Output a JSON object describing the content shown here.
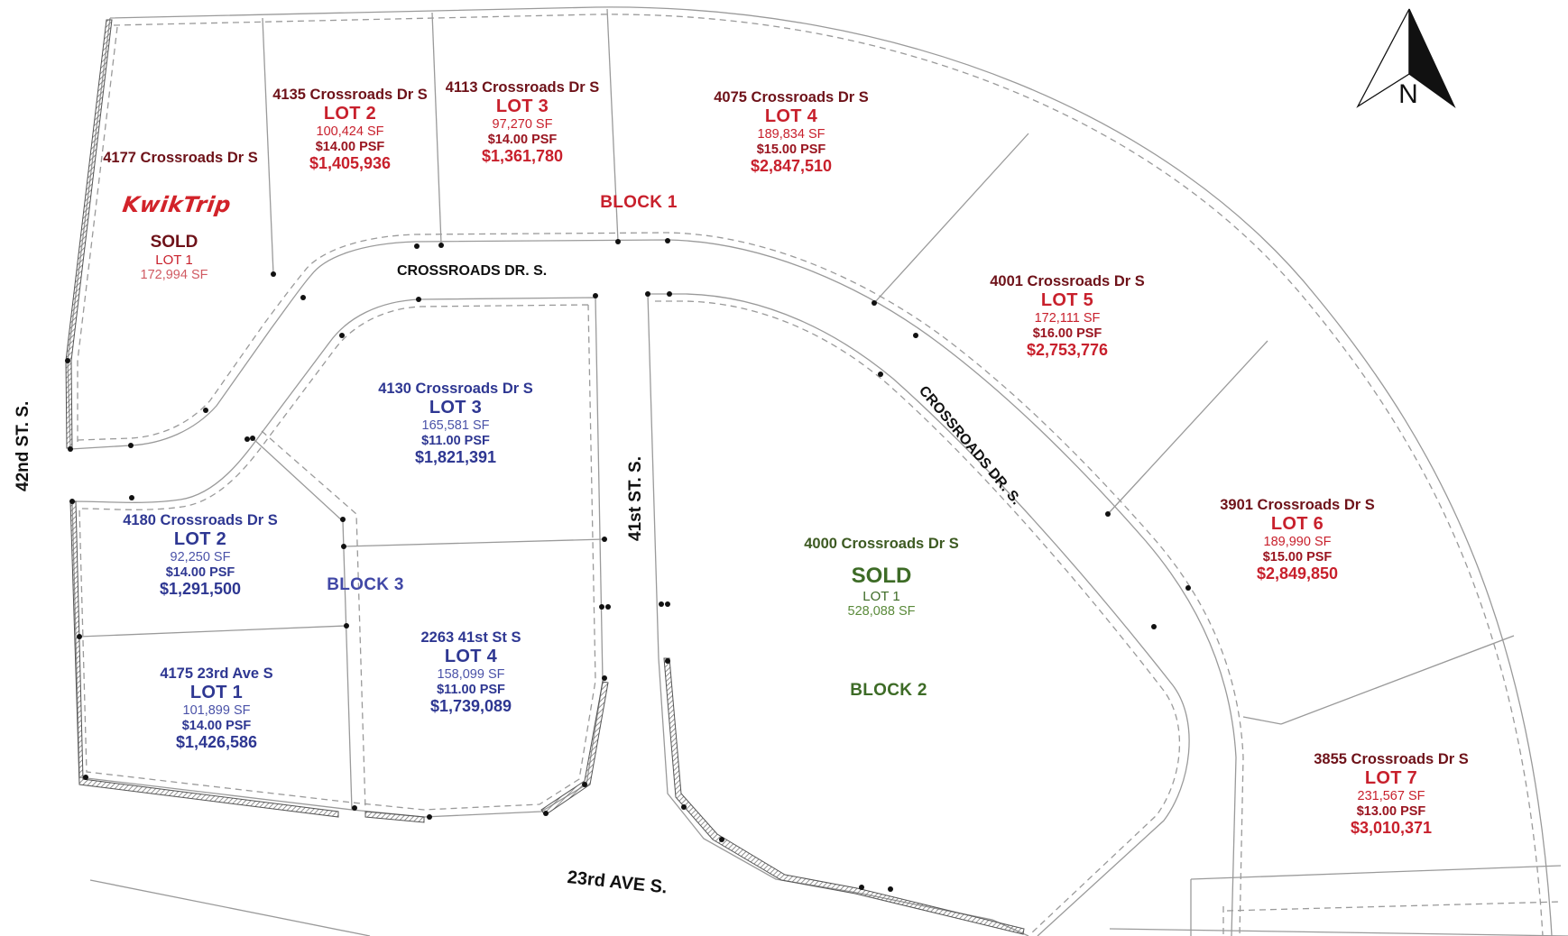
{
  "streets": {
    "crossroads_north": "CROSSROADS DR. S.",
    "crossroads_east": "CROSSROADS DR. S.",
    "st42": "42nd ST. S.",
    "st41": "41st ST. S.",
    "ave23": "23rd AVE S."
  },
  "north_arrow": {
    "label": "N"
  },
  "blocks": {
    "block1": "BLOCK 1",
    "block2": "BLOCK 2",
    "block3": "BLOCK 3"
  },
  "kwik_trip": {
    "logo_text": "KwikTrip",
    "address": "4177 Crossroads Dr S",
    "status": "SOLD",
    "lot": "LOT 1",
    "sf": "172,994 SF"
  },
  "block1_lot2": {
    "address": "4135 Crossroads Dr S",
    "lot": "LOT 2",
    "sf": "100,424 SF",
    "psf": "$14.00 PSF",
    "price": "$1,405,936"
  },
  "block1_lot3": {
    "address": "4113 Crossroads Dr S",
    "lot": "LOT 3",
    "sf": "97,270 SF",
    "psf": "$14.00 PSF",
    "price": "$1,361,780"
  },
  "block1_lot4": {
    "address": "4075 Crossroads Dr S",
    "lot": "LOT 4",
    "sf": "189,834 SF",
    "psf": "$15.00 PSF",
    "price": "$2,847,510"
  },
  "block1_lot5": {
    "address": "4001 Crossroads Dr S",
    "lot": "LOT 5",
    "sf": "172,111 SF",
    "psf": "$16.00 PSF",
    "price": "$2,753,776"
  },
  "block1_lot6": {
    "address": "3901 Crossroads Dr S",
    "lot": "LOT 6",
    "sf": "189,990 SF",
    "psf": "$15.00 PSF",
    "price": "$2,849,850"
  },
  "block1_lot7": {
    "address": "3855 Crossroads Dr S",
    "lot": "LOT 7",
    "sf": "231,567 SF",
    "psf": "$13.00 PSF",
    "price": "$3,010,371"
  },
  "block3_lot3": {
    "address": "4130 Crossroads Dr S",
    "lot": "LOT 3",
    "sf": "165,581 SF",
    "psf": "$11.00 PSF",
    "price": "$1,821,391"
  },
  "block3_lot2": {
    "address": "4180 Crossroads Dr S",
    "lot": "LOT 2",
    "sf": "92,250 SF",
    "psf": "$14.00 PSF",
    "price": "$1,291,500"
  },
  "block3_lot1": {
    "address": "4175 23rd Ave S",
    "lot": "LOT 1",
    "sf": "101,899 SF",
    "psf": "$14.00 PSF",
    "price": "$1,426,586"
  },
  "block3_lot4": {
    "address": "2263 41st St S",
    "lot": "LOT 4",
    "sf": "158,099 SF",
    "psf": "$11.00 PSF",
    "price": "$1,739,089"
  },
  "block2_lot1": {
    "address": "4000 Crossroads Dr S",
    "status": "SOLD",
    "lot": "LOT 1",
    "sf": "528,088 SF"
  }
}
